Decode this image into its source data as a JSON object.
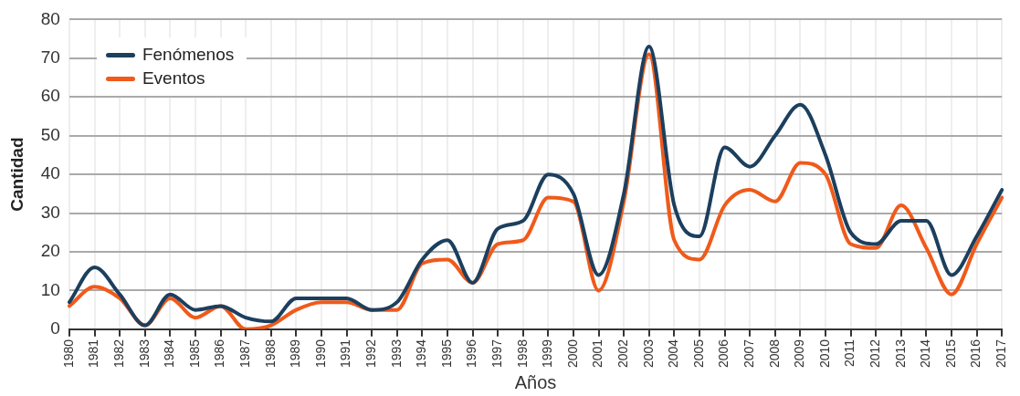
{
  "chart_data": {
    "type": "line",
    "xlabel": "Años",
    "ylabel": "Cantidad",
    "categories": [
      "1980",
      "1981",
      "1982",
      "1983",
      "1984",
      "1985",
      "1986",
      "1987",
      "1988",
      "1989",
      "1990",
      "1991",
      "1992",
      "1993",
      "1994",
      "1995",
      "1996",
      "1997",
      "1998",
      "1999",
      "2000",
      "2001",
      "2002",
      "2003",
      "2004",
      "2005",
      "2006",
      "2007",
      "2008",
      "2009",
      "2010",
      "2011",
      "2012",
      "2013",
      "2014",
      "2015",
      "2016",
      "2017"
    ],
    "series": [
      {
        "name": "Fenómenos",
        "color": "#1c3f5e",
        "values": [
          7,
          16,
          9,
          1,
          9,
          5,
          6,
          3,
          2,
          8,
          8,
          8,
          5,
          7,
          18,
          23,
          12,
          26,
          28,
          40,
          35,
          14,
          35,
          73,
          32,
          24,
          47,
          42,
          50,
          58,
          45,
          25,
          22,
          28,
          28,
          14,
          24,
          36
        ]
      },
      {
        "name": "Eventos",
        "color": "#f05a1a",
        "values": [
          6,
          11,
          8,
          1,
          8,
          3,
          6,
          0,
          1,
          5,
          7,
          7,
          5,
          5,
          17,
          18,
          12,
          22,
          23,
          34,
          33,
          10,
          33,
          71,
          23,
          18,
          32,
          36,
          33,
          43,
          40,
          22,
          21,
          32,
          21,
          9,
          22,
          34
        ]
      }
    ],
    "ylim": [
      0,
      80
    ],
    "yticks": [
      0,
      10,
      20,
      30,
      40,
      50,
      60,
      70,
      80
    ],
    "grid": true,
    "legend": "top left",
    "marker": "none",
    "line_style": "solid"
  }
}
